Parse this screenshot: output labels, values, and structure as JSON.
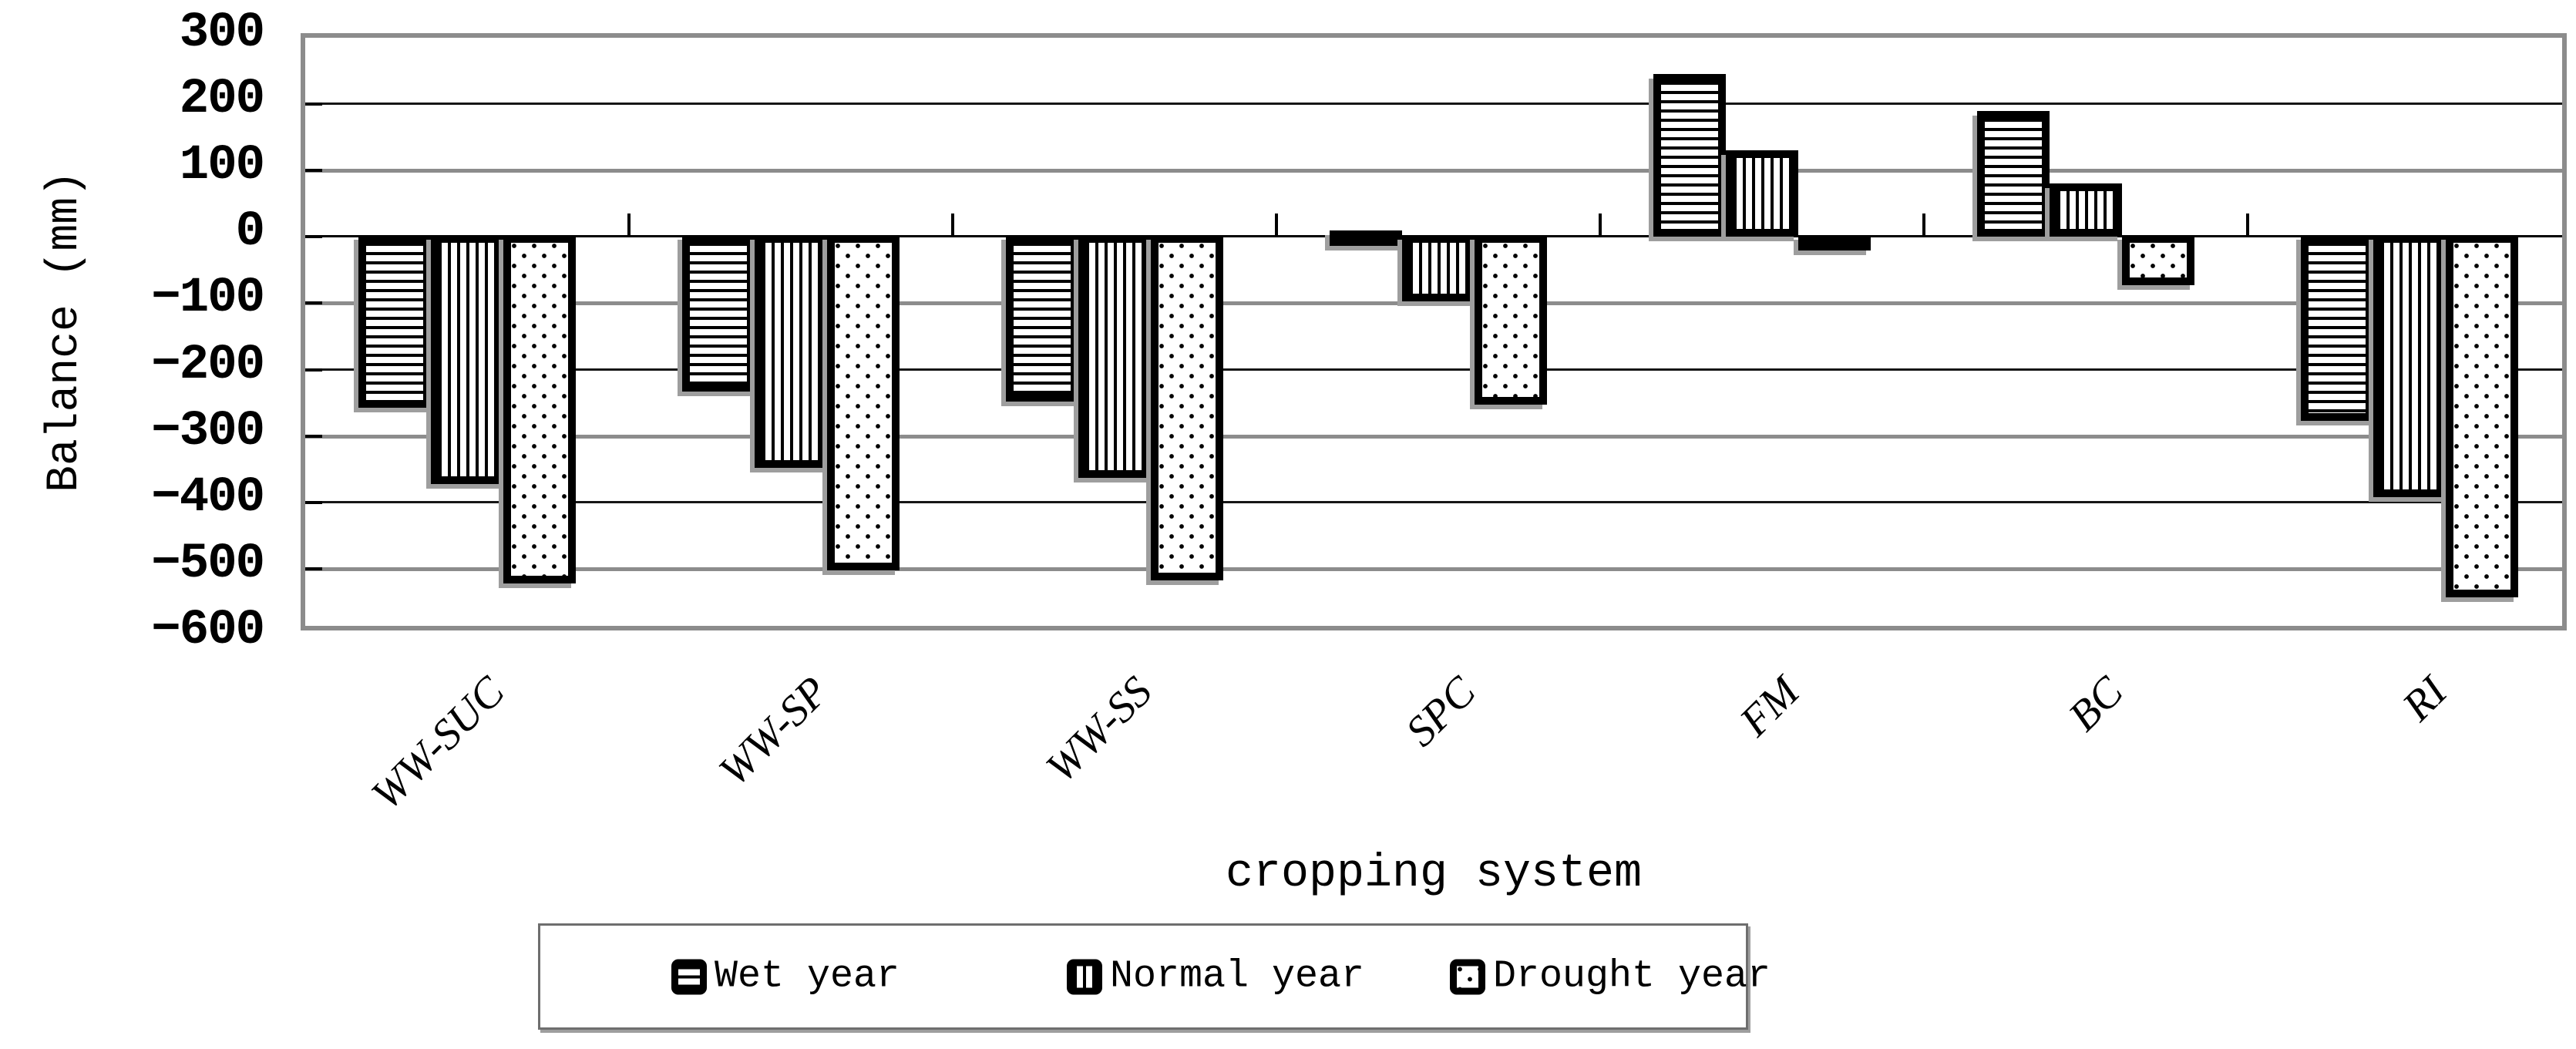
{
  "chart_data": {
    "type": "bar",
    "title": "",
    "xlabel": "cropping system",
    "ylabel": "Balance (mm)",
    "ylim": [
      -600,
      300
    ],
    "grid": "horizontal",
    "legend_position": "bottom",
    "yticks": [
      {
        "label": "300",
        "value": 300
      },
      {
        "label": "200",
        "value": 200
      },
      {
        "label": "100",
        "value": 100
      },
      {
        "label": "0",
        "value": 0
      },
      {
        "label": "−100",
        "value": -100
      },
      {
        "label": "−200",
        "value": -200
      },
      {
        "label": "−300",
        "value": -300
      },
      {
        "label": "−400",
        "value": -400
      },
      {
        "label": "−500",
        "value": -500
      },
      {
        "label": "−600",
        "value": -600
      }
    ],
    "categories": [
      "WW-SUC",
      "WW-SP",
      "WW-SS",
      "SPC",
      "FM",
      "BC",
      "RI"
    ],
    "series": [
      {
        "name": "Wet year",
        "pattern": "horizontal-stripes",
        "values": [
          -260,
          -235,
          -250,
          10,
          245,
          190,
          -280
        ]
      },
      {
        "name": "Normal year",
        "pattern": "vertical-stripes",
        "values": [
          -375,
          -350,
          -365,
          -100,
          130,
          80,
          -395
        ]
      },
      {
        "name": "Drought year",
        "pattern": "dots",
        "values": [
          -525,
          -505,
          -520,
          -255,
          -20,
          -75,
          -545
        ]
      }
    ]
  },
  "colors": {
    "background": "#ffffff",
    "bar_fill": "#ffffff",
    "bar_border": "#000000",
    "grid_dark": "#161616",
    "grid_gray": "#8c8c8c",
    "frame": "#8c8c8c",
    "shadow": "#9e9e9e",
    "text": "#000000"
  }
}
